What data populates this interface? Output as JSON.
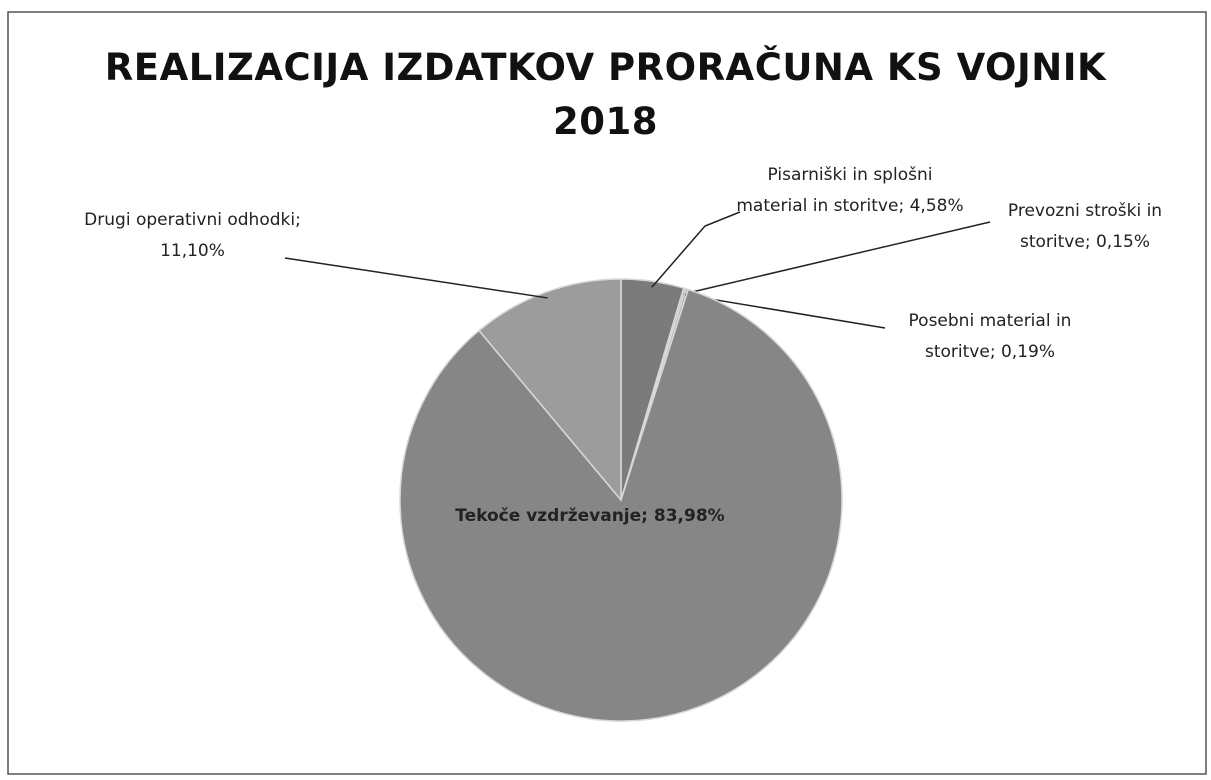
{
  "chart_data": {
    "type": "pie",
    "title": [
      "REALIZACIJA IZDATKOV PRORAČUNA KS VOJNIK",
      "2018"
    ],
    "categories": [
      "Pisarniški in splošni material in storitve;",
      "Prevozni stroški in storitve;",
      "Posebni material in storitve;",
      "Tekoče vzdrževanje;",
      "Drugi operativni odhodki;"
    ],
    "values": [
      4.58,
      0.15,
      0.19,
      83.98,
      11.1
    ],
    "value_labels": [
      "4,58%",
      "0,15%",
      "0,19%",
      "83,98%",
      "11,10%"
    ],
    "colors": [
      "#7b7b7b",
      "#bdbdbd",
      "#b0b0b0",
      "#868686",
      "#9c9c9c"
    ]
  }
}
